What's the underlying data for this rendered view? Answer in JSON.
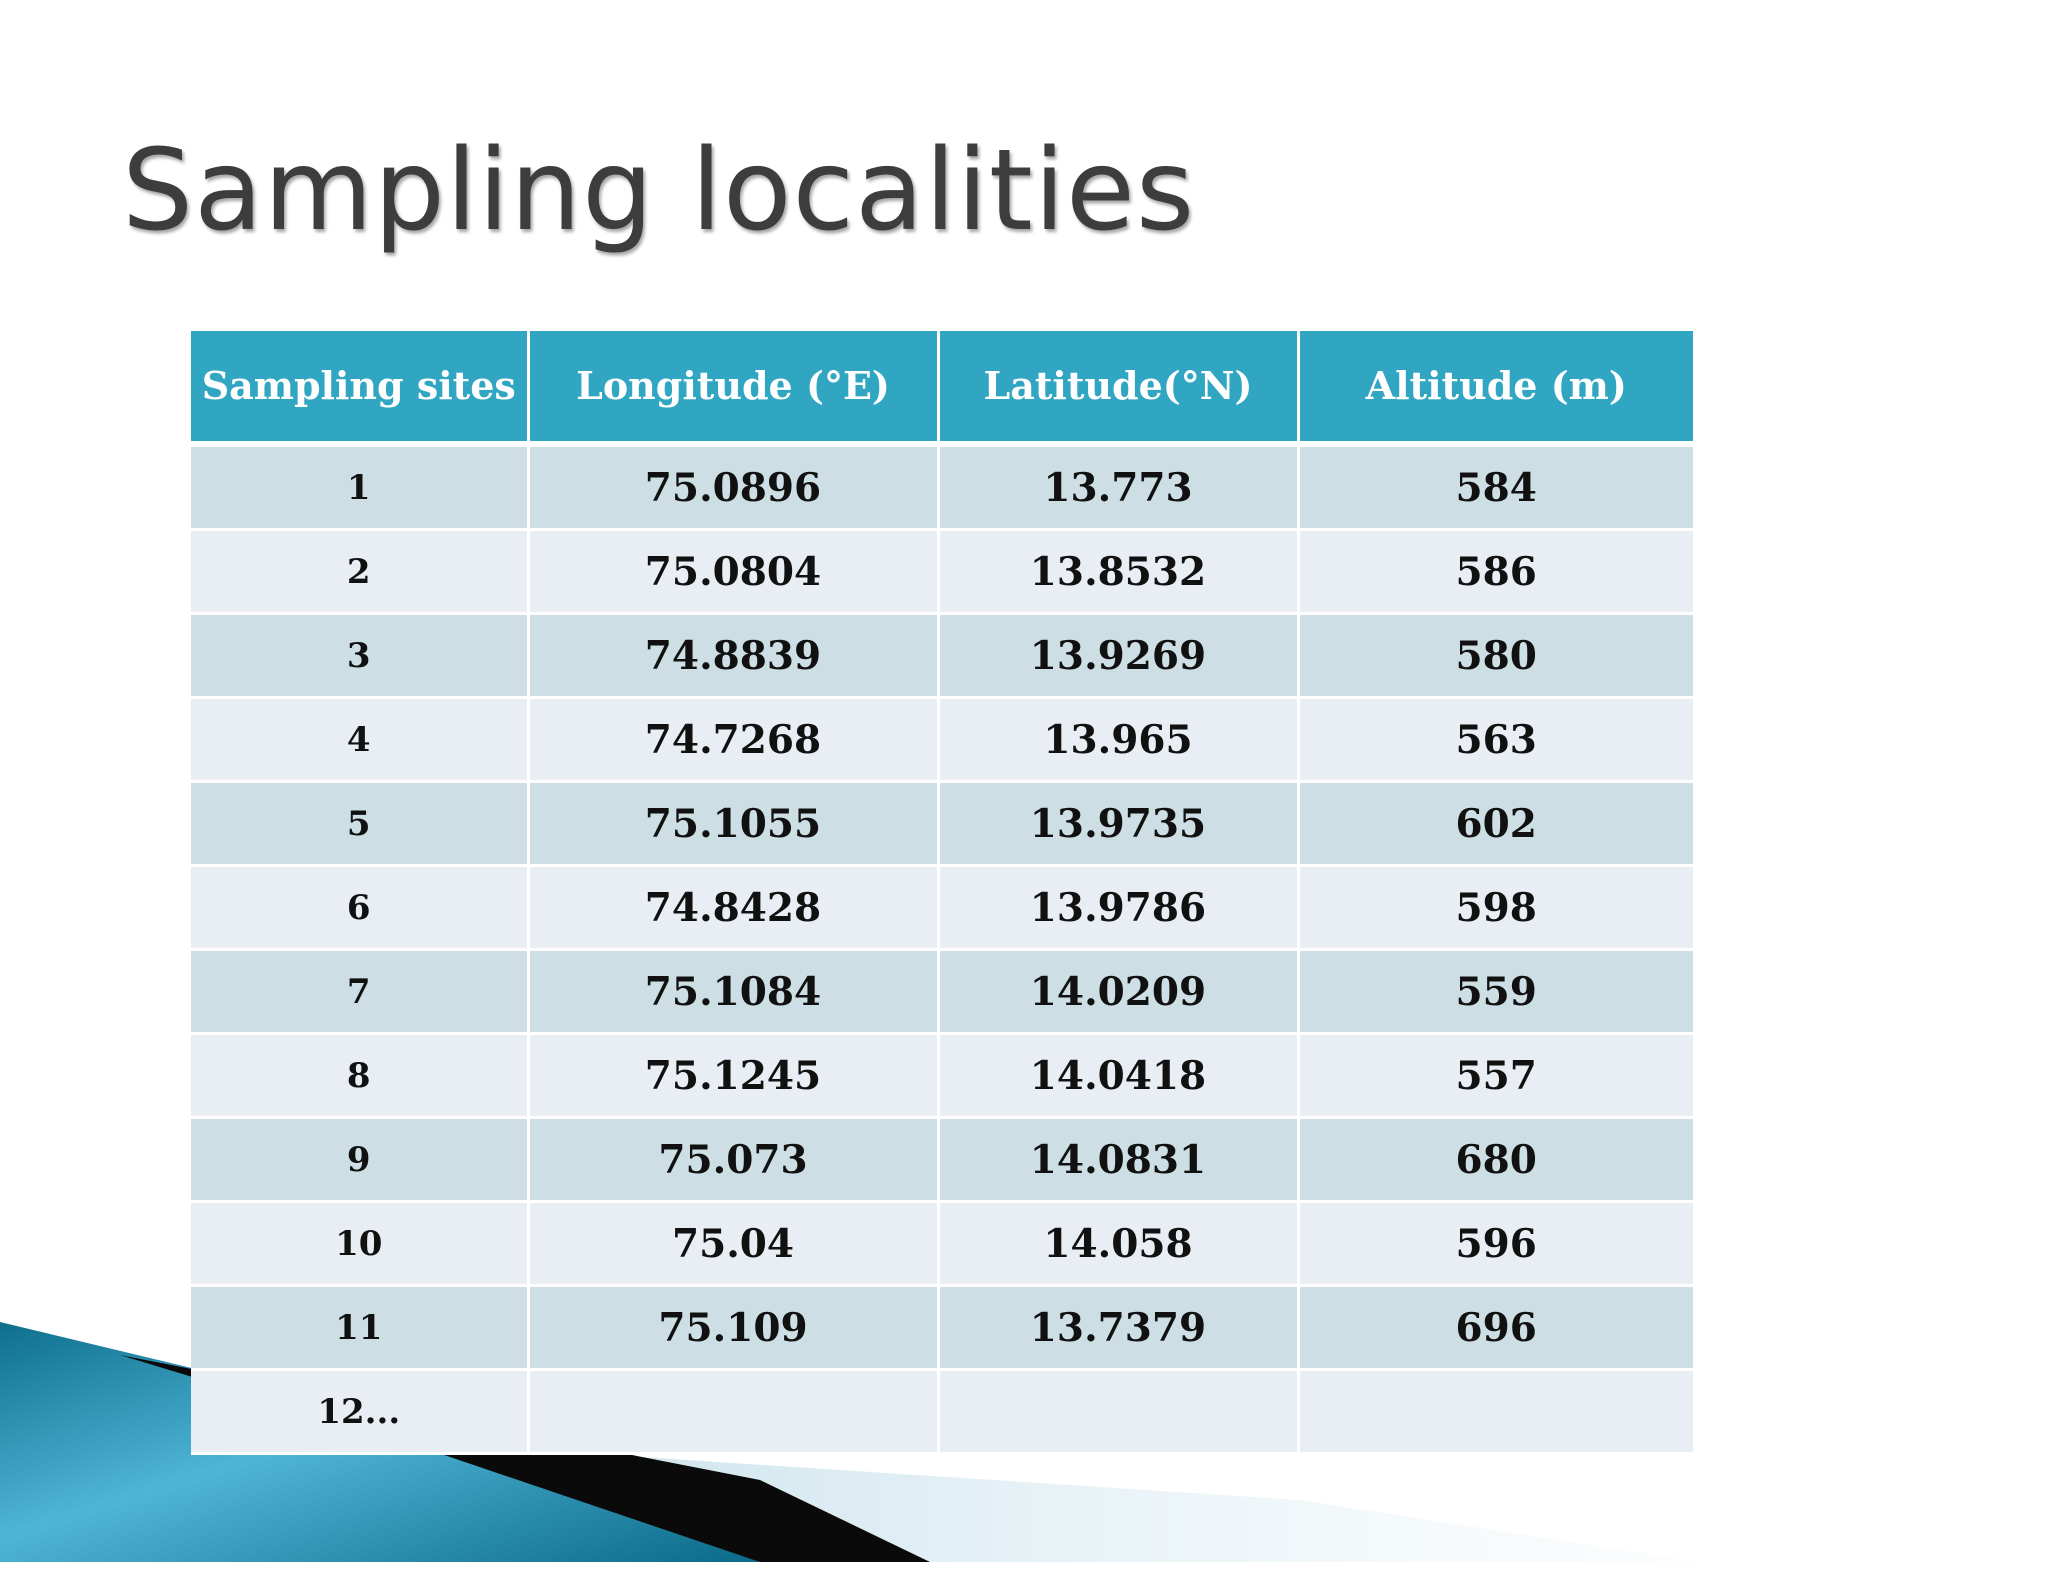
{
  "slide": {
    "title": "Sampling localities"
  },
  "table": {
    "headers": [
      "Sampling sites",
      "Longitude (°E)",
      "Latitude(°N)",
      "Altitude (m)"
    ],
    "rows": [
      [
        "1",
        "75.0896",
        "13.773",
        "584"
      ],
      [
        "2",
        "75.0804",
        "13.8532",
        "586"
      ],
      [
        "3",
        "74.8839",
        "13.9269",
        "580"
      ],
      [
        "4",
        "74.7268",
        "13.965",
        "563"
      ],
      [
        "5",
        "75.1055",
        "13.9735",
        "602"
      ],
      [
        "6",
        "74.8428",
        "13.9786",
        "598"
      ],
      [
        "7",
        "75.1084",
        "14.0209",
        "559"
      ],
      [
        "8",
        "75.1245",
        "14.0418",
        "557"
      ],
      [
        "9",
        "75.073",
        "14.0831",
        "680"
      ],
      [
        "10",
        "75.04",
        "14.058",
        "596"
      ],
      [
        "11",
        "75.109",
        "13.7379",
        "696"
      ],
      [
        "12...",
        "",
        "",
        ""
      ]
    ]
  },
  "colors": {
    "header_bg": "#31a6c3",
    "row_odd_bg": "#cddfe5",
    "row_even_bg": "#e8eef4",
    "title_text": "#3d3d3d"
  }
}
